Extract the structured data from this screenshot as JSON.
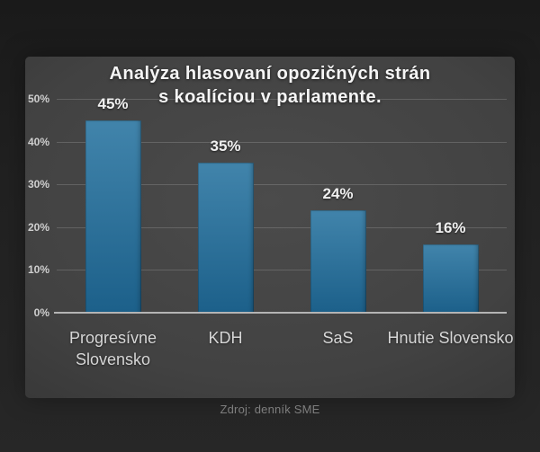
{
  "chart_data": {
    "type": "bar",
    "title": "Analýza hlasovaní opozičných strán s koalíciou v parlamente.",
    "title_lines": [
      "Analýza hlasovaní opozičných strán",
      "s koalíciou v parlamente."
    ],
    "categories": [
      "Progresívne Slovensko",
      "KDH",
      "SaS",
      "Hnutie Slovensko"
    ],
    "values": [
      45,
      35,
      24,
      16
    ],
    "value_labels": [
      "45%",
      "35%",
      "24%",
      "16%"
    ],
    "xlabel": "",
    "ylabel": "",
    "ylim": [
      0,
      50
    ],
    "yticks": [
      "0%",
      "10%",
      "20%",
      "30%",
      "40%",
      "50%"
    ],
    "grid": true,
    "legend": false,
    "bar_gradient_top": "#4184ab",
    "bar_gradient_bottom": "#1c608a",
    "baseline_color": "#b4b4b4",
    "panel_background": "#424242",
    "outer_background": "#212121"
  },
  "footer": {
    "source": "Zdroj: denník SME"
  }
}
